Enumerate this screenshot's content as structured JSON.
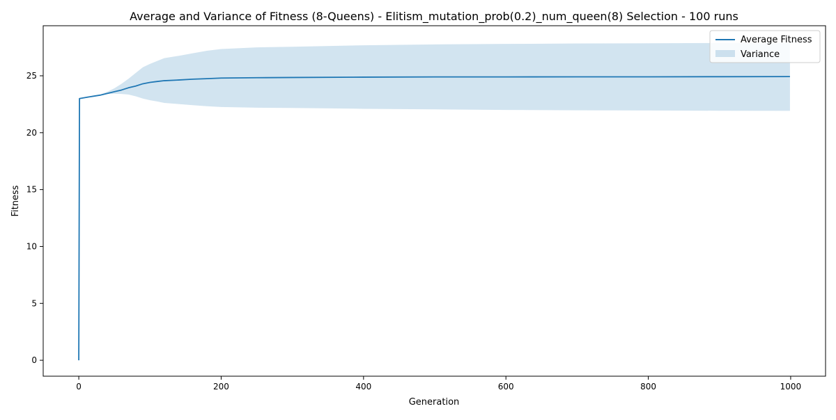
{
  "chart_data": {
    "type": "line",
    "title": "Average and Variance of Fitness (8-Queens) - Elitism_mutation_prob(0.2)_num_queen(8) Selection - 100 runs",
    "xlabel": "Generation",
    "ylabel": "Fitness",
    "xlim": [
      -50,
      1049
    ],
    "ylim": [
      -1.4,
      29.4
    ],
    "xticks": [
      0,
      200,
      400,
      600,
      800,
      1000
    ],
    "xtick_labels": [
      "0",
      "200",
      "400",
      "600",
      "800",
      "1000"
    ],
    "yticks": [
      0,
      5,
      10,
      15,
      20,
      25
    ],
    "ytick_labels": [
      "0",
      "5",
      "10",
      "15",
      "20",
      "25"
    ],
    "grid": false,
    "legend_position": "top-right",
    "series": [
      {
        "name": "Average Fitness",
        "kind": "line",
        "color": "#1f77b4",
        "x": [
          0,
          1,
          10,
          20,
          30,
          40,
          50,
          60,
          70,
          80,
          90,
          100,
          110,
          120,
          140,
          160,
          180,
          200,
          250,
          300,
          400,
          500,
          600,
          700,
          800,
          900,
          999
        ],
        "y": [
          0,
          23.0,
          23.1,
          23.2,
          23.3,
          23.45,
          23.6,
          23.75,
          23.95,
          24.1,
          24.3,
          24.42,
          24.5,
          24.57,
          24.63,
          24.7,
          24.75,
          24.8,
          24.83,
          24.85,
          24.88,
          24.9,
          24.9,
          24.91,
          24.91,
          24.92,
          24.93
        ]
      },
      {
        "name": "Variance",
        "kind": "band",
        "color": "#1f77b4",
        "opacity": 0.2,
        "x": [
          1,
          10,
          20,
          30,
          40,
          50,
          60,
          70,
          80,
          90,
          100,
          110,
          120,
          140,
          160,
          180,
          200,
          250,
          300,
          400,
          500,
          600,
          700,
          800,
          900,
          999
        ],
        "lower": [
          23.0,
          23.1,
          23.2,
          23.3,
          23.4,
          23.42,
          23.4,
          23.35,
          23.2,
          23.0,
          22.85,
          22.75,
          22.62,
          22.52,
          22.42,
          22.33,
          22.26,
          22.2,
          22.17,
          22.1,
          22.05,
          22.0,
          21.97,
          21.95,
          21.93,
          21.92
        ],
        "upper": [
          23.0,
          23.1,
          23.2,
          23.35,
          23.6,
          23.9,
          24.3,
          24.75,
          25.25,
          25.75,
          26.05,
          26.3,
          26.55,
          26.75,
          26.98,
          27.2,
          27.35,
          27.5,
          27.55,
          27.68,
          27.76,
          27.8,
          27.84,
          27.86,
          27.88,
          27.9
        ]
      }
    ]
  }
}
